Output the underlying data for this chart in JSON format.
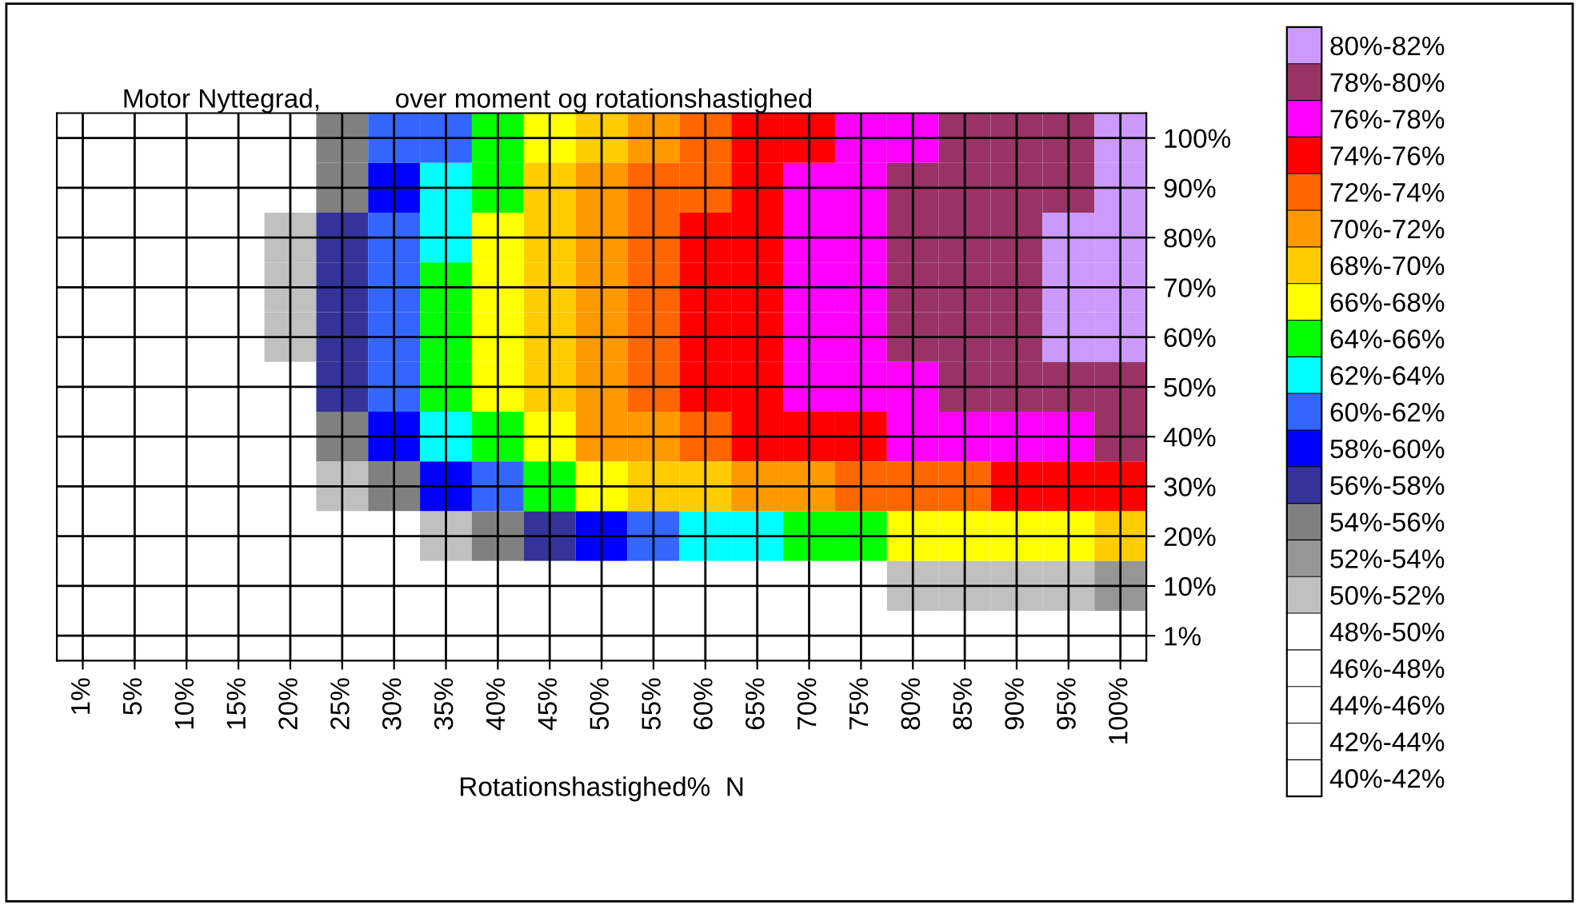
{
  "chart_data": {
    "type": "heatmap",
    "title": "Motor Nyttegrad,          over moment og rotationshastighed",
    "xlabel": "Rotationshastighed%  N",
    "categories": [
      "1%",
      "5%",
      "10%",
      "15%",
      "20%",
      "25%",
      "30%",
      "35%",
      "40%",
      "45%",
      "50%",
      "55%",
      "60%",
      "65%",
      "70%",
      "75%",
      "80%",
      "85%",
      "90%",
      "95%",
      "100%"
    ],
    "y_categories": [
      "100%",
      "90%",
      "80%",
      "70%",
      "60%",
      "50%",
      "40%",
      "30%",
      "20%",
      "10%",
      "1%"
    ],
    "cells": [
      [
        null,
        null,
        null,
        null,
        null,
        54,
        60,
        61.8,
        64.8,
        67.5,
        69.7,
        71.2,
        72.6,
        74.0,
        75.2,
        76.2,
        77.1,
        78.1,
        78.7,
        79.4,
        80.0
      ],
      [
        null,
        null,
        null,
        null,
        null,
        55.5,
        59.5,
        62.3,
        65.5,
        68.0,
        70.3,
        72.1,
        73.3,
        74.7,
        76.0,
        76.8,
        78.0,
        78.7,
        79.3,
        79.9,
        80.6
      ],
      [
        null,
        null,
        null,
        null,
        50.5,
        56.2,
        60.5,
        63.7,
        66.5,
        69.2,
        70.8,
        72.8,
        74.2,
        75.5,
        76.7,
        77.6,
        78.3,
        79.0,
        79.6,
        80.1,
        80.9
      ],
      [
        null,
        null,
        null,
        null,
        51.3,
        56.6,
        61,
        64.3,
        67.3,
        69.8,
        71.5,
        73.1,
        74.4,
        75.8,
        76.7,
        77.5,
        78.3,
        78.9,
        79.5,
        80.4,
        81.0
      ],
      [
        null,
        null,
        null,
        null,
        51.6,
        57.3,
        61.3,
        64.8,
        67.6,
        69.8,
        71.5,
        73.2,
        74.6,
        75.9,
        76.8,
        77.6,
        78.2,
        78.7,
        79.4,
        80.0,
        80.5
      ],
      [
        null,
        null,
        null,
        null,
        null,
        56.1,
        60.9,
        64.4,
        67.4,
        69.6,
        71.0,
        72.6,
        74.1,
        75.2,
        76.2,
        76.9,
        77.7,
        78.2,
        78.7,
        79.1,
        79.5
      ],
      [
        null,
        null,
        null,
        null,
        null,
        54.0,
        58.6,
        62.6,
        65.4,
        67.6,
        70.1,
        71.7,
        72.8,
        74.0,
        74.8,
        75.5,
        76.0,
        76.6,
        77.1,
        77.6,
        78.1
      ],
      [
        null,
        null,
        null,
        null,
        null,
        51,
        55.3,
        58.2,
        61.4,
        64.4,
        66.3,
        68.0,
        69.5,
        70.5,
        71.3,
        72.0,
        72.7,
        73.3,
        74.0,
        74.1,
        74.2
      ],
      [
        null,
        null,
        null,
        null,
        null,
        null,
        null,
        51,
        54,
        56.5,
        59,
        61,
        62.5,
        63.5,
        64.5,
        65.3,
        66,
        66.8,
        67.3,
        67.8,
        68.2
      ],
      [
        null,
        null,
        null,
        null,
        null,
        null,
        null,
        null,
        null,
        null,
        null,
        null,
        null,
        null,
        null,
        null,
        50.2,
        50.6,
        51.2,
        51.6,
        52
      ],
      [
        null,
        null,
        null,
        null,
        null,
        null,
        null,
        null,
        null,
        null,
        null,
        null,
        null,
        null,
        null,
        null,
        null,
        null,
        null,
        null,
        null
      ]
    ],
    "clim": [
      40,
      82
    ],
    "colors": [
      "#cc99ff",
      "#993366",
      "#ff00ff",
      "#ff0000",
      "#ff6600",
      "#ff9900",
      "#ffcc00",
      "#ffff00",
      "#00ff00",
      "#00ffff",
      "#3366ff",
      "#0000ff",
      "#333399",
      "#808080",
      "#969696",
      "#c0c0c0",
      "#ffffff",
      "#ffffff",
      "#ffffff",
      "#ffffff",
      "#ffffff"
    ],
    "cticks": [
      {
        "value": 81,
        "label": "80%-82%"
      },
      {
        "value": 79,
        "label": "78%-80%"
      },
      {
        "value": 77,
        "label": "76%-78%"
      },
      {
        "value": 75,
        "label": "74%-76%"
      },
      {
        "value": 73,
        "label": "72%-74%"
      },
      {
        "value": 71,
        "label": "70%-72%"
      },
      {
        "value": 69,
        "label": "68%-70%"
      },
      {
        "value": 67,
        "label": "66%-68%"
      },
      {
        "value": 65,
        "label": "64%-66%"
      },
      {
        "value": 63,
        "label": "62%-64%"
      },
      {
        "value": 61,
        "label": "60%-62%"
      },
      {
        "value": 59,
        "label": "58%-60%"
      },
      {
        "value": 57,
        "label": "56%-58%"
      },
      {
        "value": 55,
        "label": "54%-56%"
      },
      {
        "value": 53,
        "label": "52%-54%"
      },
      {
        "value": 51,
        "label": "50%-52%"
      },
      {
        "value": 49,
        "label": "48%-50%"
      },
      {
        "value": 47,
        "label": "46%-48%"
      },
      {
        "value": 45,
        "label": "44%-46%"
      },
      {
        "value": 43,
        "label": "42%-44%"
      },
      {
        "value": 41,
        "label": "40%-42%"
      }
    ],
    "grid": true
  }
}
